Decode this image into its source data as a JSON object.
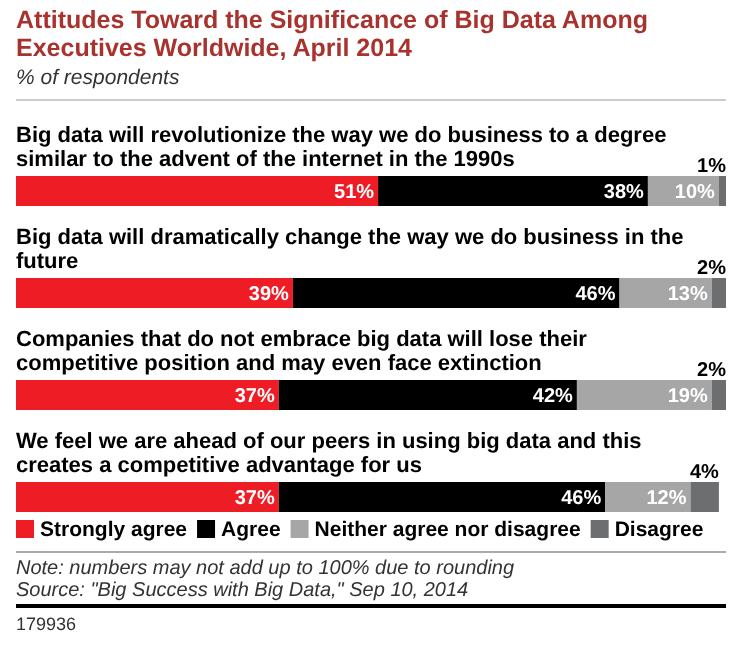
{
  "chart_data": {
    "type": "bar",
    "orientation": "horizontal",
    "stacked": true,
    "title": "Attitudes Toward the Significance of Big Data Among Executives Worldwide, April 2014",
    "subtitle": "% of respondents",
    "categories": [
      "Big data will revolutionize the way we do business to a degree similar to the advent of the internet in the 1990s",
      "Big data will dramatically change the way we do business in the future",
      "Companies that do not embrace big data will lose their competitive position and may even face extinction",
      "We feel we are ahead of our peers in using big data and this creates a competitive advantage for us"
    ],
    "series": [
      {
        "name": "Strongly agree",
        "color": "#ee1c25",
        "values": [
          51,
          39,
          37,
          37
        ],
        "value_labels": [
          "51%",
          "39%",
          "37%",
          "37%"
        ]
      },
      {
        "name": "Agree",
        "color": "#000000",
        "values": [
          38,
          46,
          42,
          46
        ],
        "value_labels": [
          "38%",
          "46%",
          "42%",
          "46%"
        ]
      },
      {
        "name": "Neither agree nor disagree",
        "color": "#a6a6a6",
        "values": [
          10,
          13,
          19,
          12
        ],
        "value_labels": [
          "10%",
          "13%",
          "19%",
          "12%"
        ]
      },
      {
        "name": "Disagree",
        "color": "#6d6e70",
        "values": [
          1,
          2,
          2,
          4
        ],
        "value_labels": [
          "1%",
          "2%",
          "2%",
          "4%"
        ]
      }
    ],
    "xlim": [
      0,
      100
    ],
    "legend": "bottom",
    "annotations": [
      "Note: numbers may not add up to 100% due to rounding",
      "Source: \"Big Success with Big Data,\" Sep 10, 2014",
      "179936"
    ]
  }
}
